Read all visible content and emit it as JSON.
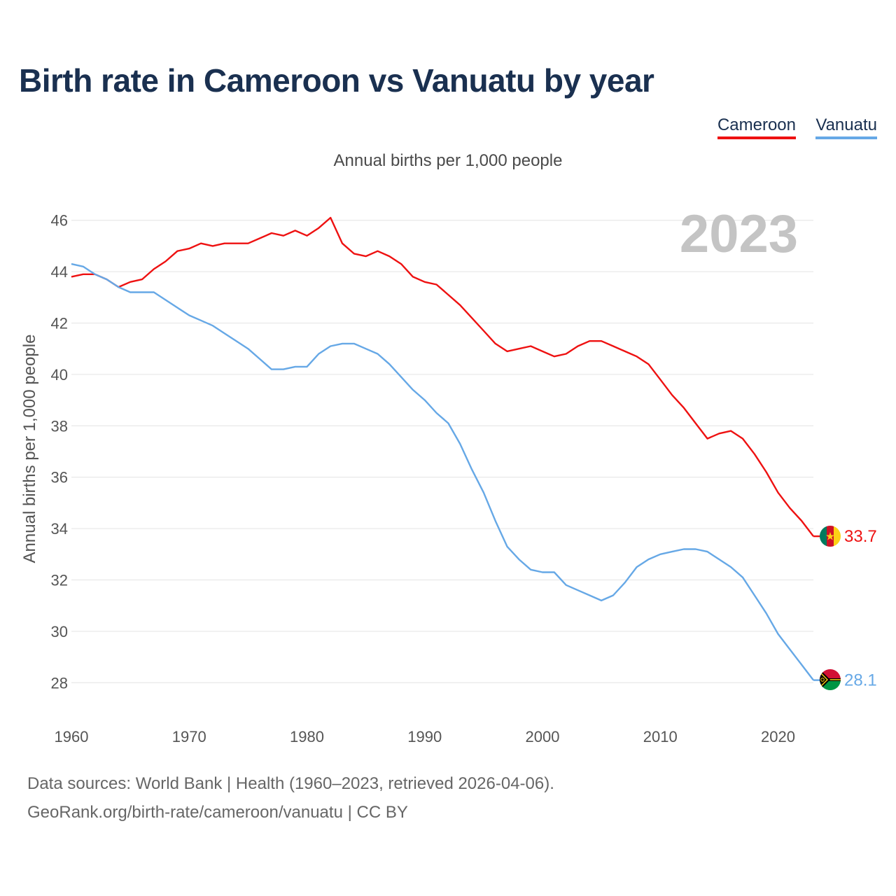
{
  "title": "Birth rate in Cameroon vs Vanuatu by year",
  "subtitle": "Annual births per 1,000 people",
  "year_overlay": "2023",
  "legend": [
    {
      "name": "Cameroon",
      "color": "#ee1111"
    },
    {
      "name": "Vanuatu",
      "color": "#66a8e6"
    }
  ],
  "source": {
    "line1": "Data sources: World Bank | Health (1960–2023, retrieved 2026-04-06).",
    "line2": "GeoRank.org/birth-rate/cameroon/vanuatu | CC BY"
  },
  "chart_data": {
    "type": "line",
    "title": "Birth rate in Cameroon vs Vanuatu by year",
    "xlabel": "",
    "ylabel": "Annual births per 1,000 people",
    "xlim": [
      1960,
      2023
    ],
    "ylim": [
      27,
      47
    ],
    "x_ticks": [
      1960,
      1970,
      1980,
      1990,
      2000,
      2010,
      2020
    ],
    "y_ticks": [
      28,
      30,
      32,
      34,
      36,
      38,
      40,
      42,
      44,
      46
    ],
    "grid": true,
    "legend_position": "top-right",
    "x": [
      1960,
      1961,
      1962,
      1963,
      1964,
      1965,
      1966,
      1967,
      1968,
      1969,
      1970,
      1971,
      1972,
      1973,
      1974,
      1975,
      1976,
      1977,
      1978,
      1979,
      1980,
      1981,
      1982,
      1983,
      1984,
      1985,
      1986,
      1987,
      1988,
      1989,
      1990,
      1991,
      1992,
      1993,
      1994,
      1995,
      1996,
      1997,
      1998,
      1999,
      2000,
      2001,
      2002,
      2003,
      2004,
      2005,
      2006,
      2007,
      2008,
      2009,
      2010,
      2011,
      2012,
      2013,
      2014,
      2015,
      2016,
      2017,
      2018,
      2019,
      2020,
      2021,
      2022,
      2023
    ],
    "series": [
      {
        "name": "Cameroon",
        "color": "#ee1111",
        "end_label": "33.7",
        "values": [
          43.8,
          43.9,
          43.9,
          43.7,
          43.4,
          43.6,
          43.7,
          44.1,
          44.4,
          44.8,
          44.9,
          45.1,
          45.0,
          45.1,
          45.1,
          45.1,
          45.3,
          45.5,
          45.4,
          45.6,
          45.4,
          45.7,
          46.1,
          45.1,
          44.7,
          44.6,
          44.8,
          44.6,
          44.3,
          43.8,
          43.6,
          43.5,
          43.1,
          42.7,
          42.2,
          41.7,
          41.2,
          40.9,
          41.0,
          41.1,
          40.9,
          40.7,
          40.8,
          41.1,
          41.3,
          41.3,
          41.1,
          40.9,
          40.7,
          40.4,
          39.8,
          39.2,
          38.7,
          38.1,
          37.5,
          37.7,
          37.8,
          37.5,
          36.9,
          36.2,
          35.4,
          34.8,
          34.3,
          33.7
        ]
      },
      {
        "name": "Vanuatu",
        "color": "#66a8e6",
        "end_label": "28.1",
        "values": [
          44.3,
          44.2,
          43.9,
          43.7,
          43.4,
          43.2,
          43.2,
          43.2,
          42.9,
          42.6,
          42.3,
          42.1,
          41.9,
          41.6,
          41.3,
          41.0,
          40.6,
          40.2,
          40.2,
          40.3,
          40.3,
          40.8,
          41.1,
          41.2,
          41.2,
          41.0,
          40.8,
          40.4,
          39.9,
          39.4,
          39.0,
          38.5,
          38.1,
          37.3,
          36.3,
          35.4,
          34.3,
          33.3,
          32.8,
          32.4,
          32.3,
          32.3,
          31.8,
          31.6,
          31.4,
          31.2,
          31.4,
          31.9,
          32.5,
          32.8,
          33.0,
          33.1,
          33.2,
          33.2,
          33.1,
          32.8,
          32.5,
          32.1,
          31.4,
          30.7,
          29.9,
          29.3,
          28.7,
          28.1
        ]
      }
    ]
  }
}
